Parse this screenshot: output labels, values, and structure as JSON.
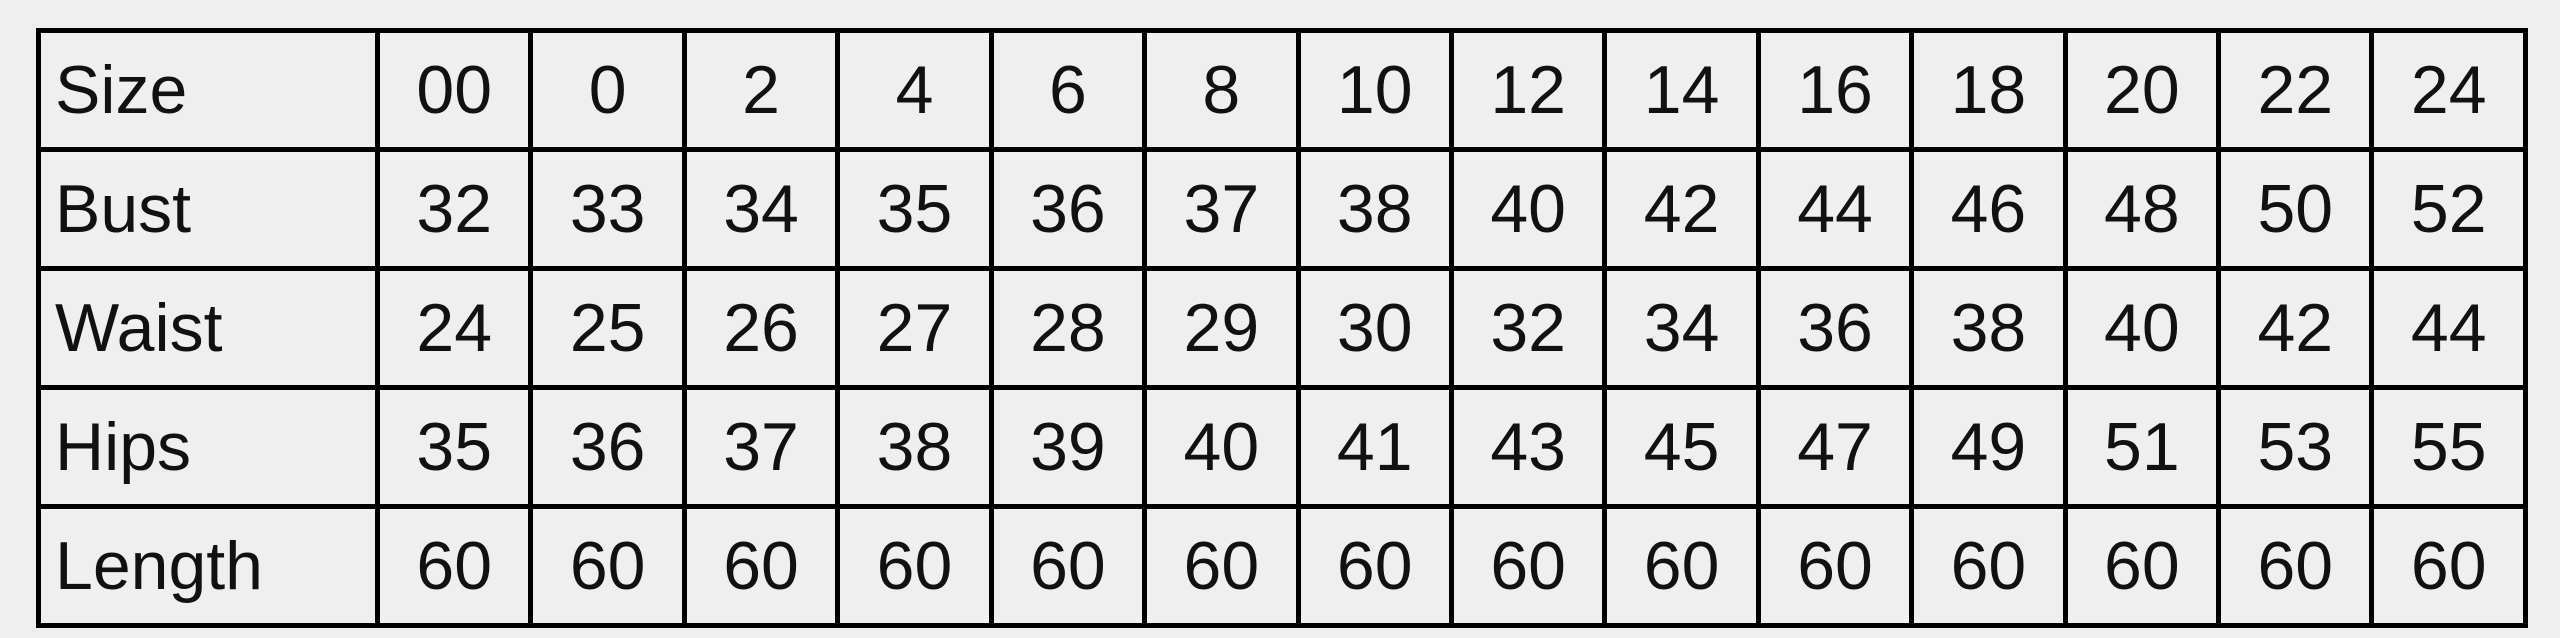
{
  "table": {
    "rows": [
      {
        "label": "Size",
        "values": [
          "00",
          "0",
          "2",
          "4",
          "6",
          "8",
          "10",
          "12",
          "14",
          "16",
          "18",
          "20",
          "22",
          "24"
        ]
      },
      {
        "label": "Bust",
        "values": [
          "32",
          "33",
          "34",
          "35",
          "36",
          "37",
          "38",
          "40",
          "42",
          "44",
          "46",
          "48",
          "50",
          "52"
        ]
      },
      {
        "label": "Waist",
        "values": [
          "24",
          "25",
          "26",
          "27",
          "28",
          "29",
          "30",
          "32",
          "34",
          "36",
          "38",
          "40",
          "42",
          "44"
        ]
      },
      {
        "label": "Hips",
        "values": [
          "35",
          "36",
          "37",
          "38",
          "39",
          "40",
          "41",
          "43",
          "45",
          "47",
          "49",
          "51",
          "53",
          "55"
        ]
      },
      {
        "label": "Length",
        "values": [
          "60",
          "60",
          "60",
          "60",
          "60",
          "60",
          "60",
          "60",
          "60",
          "60",
          "60",
          "60",
          "60",
          "60"
        ]
      }
    ]
  }
}
